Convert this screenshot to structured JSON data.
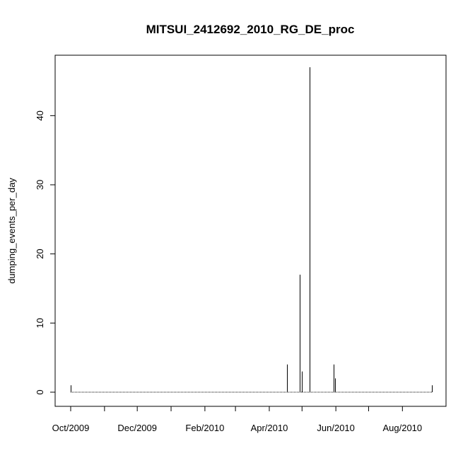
{
  "chart_data": {
    "type": "bar",
    "title": "MITSUI_2412692_2010_RG_DE_proc",
    "xlabel": "",
    "ylabel": "dumping_events_per_day",
    "x_range": [
      "2009-10-01",
      "2010-09-01"
    ],
    "ylim": [
      0,
      48
    ],
    "y_ticks": [
      0,
      10,
      20,
      30,
      40
    ],
    "x_ticks": [
      {
        "date": "2009-10-01",
        "label": "Oct/2009"
      },
      {
        "date": "2009-11-01",
        "label": ""
      },
      {
        "date": "2009-12-01",
        "label": "Dec/2009"
      },
      {
        "date": "2010-01-01",
        "label": ""
      },
      {
        "date": "2010-02-01",
        "label": "Feb/2010"
      },
      {
        "date": "2010-03-01",
        "label": ""
      },
      {
        "date": "2010-04-01",
        "label": "Apr/2010"
      },
      {
        "date": "2010-05-01",
        "label": ""
      },
      {
        "date": "2010-06-01",
        "label": "Jun/2010"
      },
      {
        "date": "2010-07-01",
        "label": ""
      },
      {
        "date": "2010-08-01",
        "label": "Aug/2010"
      }
    ],
    "baseline_dates": [
      "2009-10-01",
      "2010-08-28"
    ],
    "series": [
      {
        "points": [
          {
            "date": "2009-10-01",
            "value": 1
          },
          {
            "date": "2010-04-17",
            "value": 4
          },
          {
            "date": "2010-04-29",
            "value": 17
          },
          {
            "date": "2010-05-01",
            "value": 3
          },
          {
            "date": "2010-05-08",
            "value": 47
          },
          {
            "date": "2010-05-30",
            "value": 4
          },
          {
            "date": "2010-05-31",
            "value": 2
          },
          {
            "date": "2010-08-28",
            "value": 1
          }
        ]
      }
    ],
    "grid": false,
    "color": "#000000"
  }
}
